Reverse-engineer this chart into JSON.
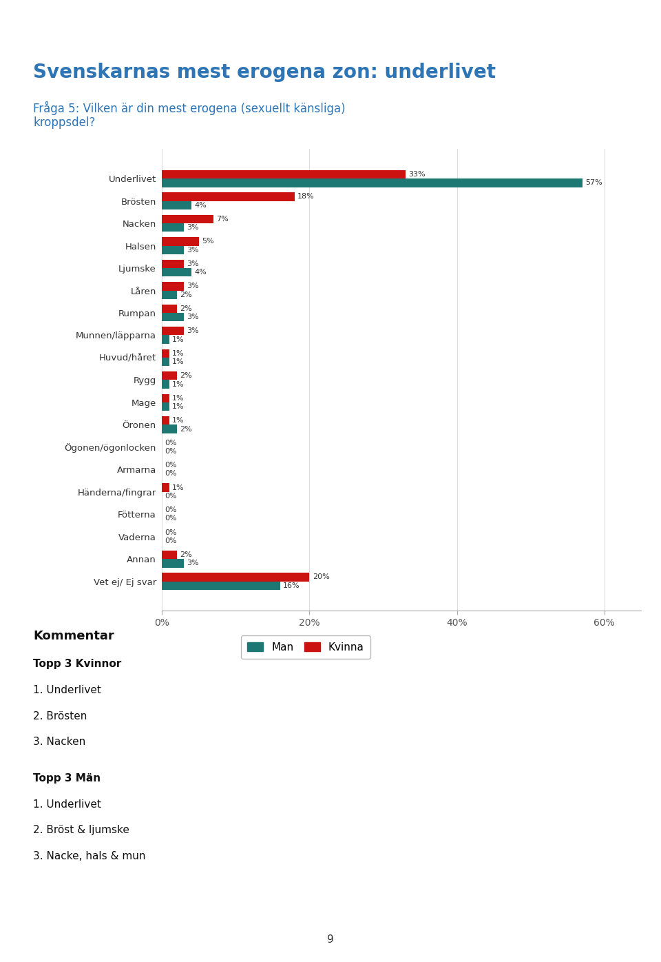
{
  "title": "Svenskarnas mest erogena zon: underlivet",
  "subtitle": "Fråga 5: Vilken är din mest erogena (sexuellt känsliga)\nkroppsdel?",
  "categories": [
    "Underlivet",
    "Brösten",
    "Nacken",
    "Halsen",
    "Ljumske",
    "Låren",
    "Rumpan",
    "Munnen/läpparna",
    "Huvud/håret",
    "Rygg",
    "Mage",
    "Öronen",
    "Ögonen/ögonlocken",
    "Armarna",
    "Händerna/fingrar",
    "Fötterna",
    "Vaderna",
    "Annan",
    "Vet ej/ Ej svar"
  ],
  "man_values": [
    57,
    4,
    3,
    3,
    4,
    2,
    3,
    1,
    1,
    1,
    1,
    2,
    0,
    0,
    0,
    0,
    0,
    3,
    16
  ],
  "kvinna_values": [
    33,
    18,
    7,
    5,
    3,
    3,
    2,
    3,
    1,
    2,
    1,
    1,
    0,
    0,
    1,
    0,
    0,
    2,
    20
  ],
  "man_color": "#1d7874",
  "kvinna_color": "#cc1111",
  "title_color": "#2e75b6",
  "subtitle_color": "#2e75b6",
  "bg_color": "#ffffff",
  "xlim": [
    0,
    65
  ],
  "xtick_labels": [
    "0%",
    "20%",
    "40%",
    "60%"
  ],
  "xtick_values": [
    0,
    20,
    40,
    60
  ],
  "page_number": "9"
}
